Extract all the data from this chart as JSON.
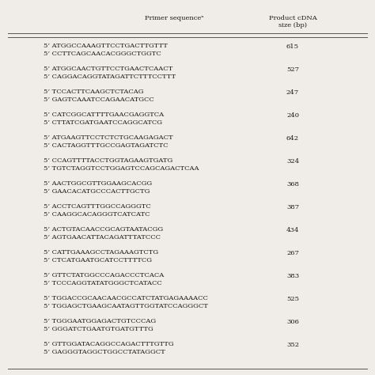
{
  "header_col1": "Primer sequenceᵃ",
  "header_col2": "Product cDNA\nsize (bp)",
  "rows": [
    {
      "primers": [
        "5’ ATGGCCAAAGTTCCTGACTTGTTT",
        "5’ CCTTCAGCAACACGGGCTGGTC"
      ],
      "size": "615"
    },
    {
      "primers": [
        "5’ ATGGCAACTGTTCCTGAACTCAACT",
        "5’ CAGGACAGGTATAGATTCTTTCCTTT"
      ],
      "size": "527"
    },
    {
      "primers": [
        "5’ TCCACTTCAAGCTCTACAG",
        "5’ GAGTCAAATCCAGAACATGCC"
      ],
      "size": "247"
    },
    {
      "primers": [
        "5’ CATCGGCATTTTGAACGAGGTCA",
        "5’ CTTATCGATGAATCCAGGCATCG"
      ],
      "size": "240"
    },
    {
      "primers": [
        "5’ ATGAAGTTCCTCTCTGCAAGAGACT",
        "5’ CACTAGGTTTGCCGAGTAGATCTC"
      ],
      "size": "642"
    },
    {
      "primers": [
        "5’ CCAGTTTTACCTGGTAGAAGTGATG",
        "5’ TGTCTAGGTCCTGGAGTCCAGCAGACTCAA"
      ],
      "size": "324"
    },
    {
      "primers": [
        "5’ AACTGGCGTTGGAAGCACGG",
        "5’ GAACACATGCCCACTTGCTG"
      ],
      "size": "368"
    },
    {
      "primers": [
        "5’ ACCTCAGTTTGGCCAGGGTC",
        "5’ CAAGGCACAGGGTCATCATC"
      ],
      "size": "387"
    },
    {
      "primers": [
        "5’ ACTGTACAACCGCAGTAATACGG",
        "5’ AGTGAACATTACAGATTTATCCC"
      ],
      "size": "434"
    },
    {
      "primers": [
        "5’ CATTGAAAGCCTAGAAAGTCTG",
        "5’ CTCATGAATGCATCCTTTTCG"
      ],
      "size": "267"
    },
    {
      "primers": [
        "5’ GTTCTATGGCCCAGACCCTCACA",
        "5’ TCCCAGGTATATGGGCTCATACC"
      ],
      "size": "383"
    },
    {
      "primers": [
        "5’ TGGACCGCAACAACGCCATCTATGAGAAAACC",
        "5’ TGGAGCTGAAGCAATAGTTGGTATCCAGGGCT"
      ],
      "size": "525"
    },
    {
      "primers": [
        "5’ TGGGAATGGAGACTGTCCCAG",
        "5’ GGGATCTGAATGTGATGTTTG"
      ],
      "size": "306"
    },
    {
      "primers": [
        "5’ GTTGGATACAGGCCAGACTTTGTTG",
        "5’ GAGGGTAGGCTGGCCTATAGGCT"
      ],
      "size": "352"
    }
  ],
  "bg_color": "#f0ede8",
  "text_color": "#1a1a1a",
  "header_line_color": "#555555",
  "font_size": 6.0,
  "header_font_size": 6.0,
  "fig_width": 4.74,
  "fig_height": 4.74,
  "dpi": 100
}
